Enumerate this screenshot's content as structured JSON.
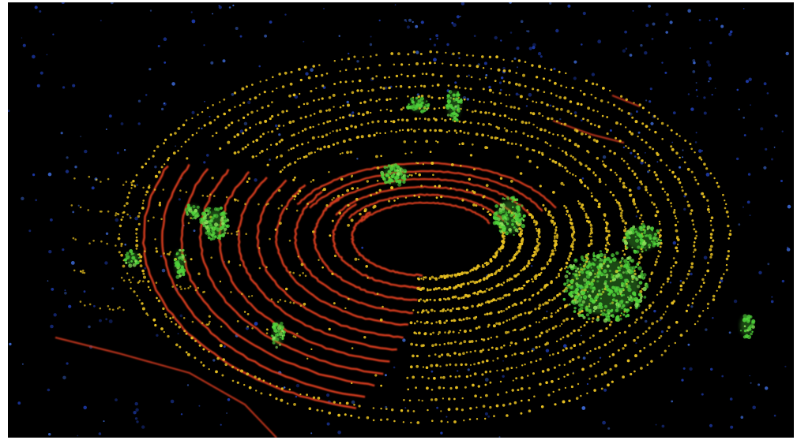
{
  "image": {
    "subject": "lidar-point-cloud",
    "palette": {
      "background": "#000000",
      "frame_border": "#ffffff",
      "ground_near": "#d23a1c",
      "ground_mid": "#e8c020",
      "vegetation": "#4fd23a",
      "far_points": "#1f3fb8",
      "far_points_light": "#3f6fe0"
    }
  }
}
